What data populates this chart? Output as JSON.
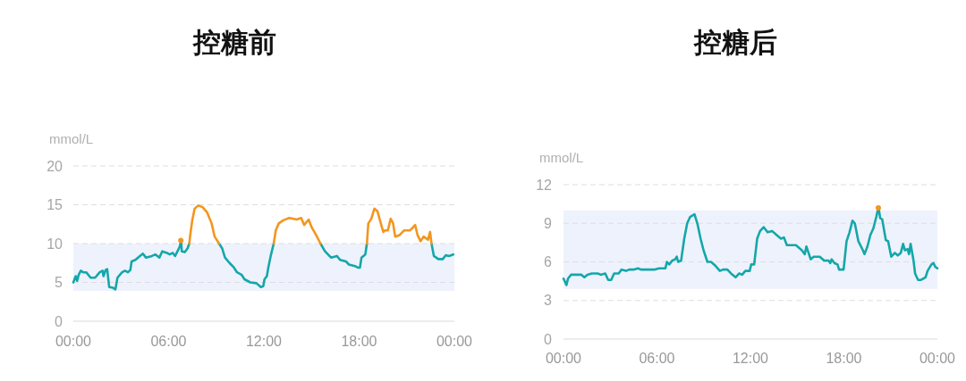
{
  "chart_data": [
    {
      "type": "line",
      "title": "控糖前",
      "ylabel": "mmol/L",
      "xlim": [
        0,
        24
      ],
      "ylim": [
        0,
        20
      ],
      "xticks": [
        {
          "value": 0,
          "label": "00:00"
        },
        {
          "value": 6,
          "label": "06:00"
        },
        {
          "value": 12,
          "label": "12:00"
        },
        {
          "value": 18,
          "label": "18:00"
        },
        {
          "value": 24,
          "label": "00:00"
        }
      ],
      "yticks": [
        0,
        5,
        10,
        15,
        20
      ],
      "grid": "y",
      "line_style": "solid",
      "bands": [
        {
          "axis": "y",
          "from": 3.9,
          "to": 10,
          "color": "#eef2fc"
        }
      ],
      "x": [
        0,
        0.15,
        0.24,
        0.34,
        0.47,
        0.62,
        0.81,
        1.09,
        1.37,
        1.66,
        1.84,
        1.9,
        2.03,
        2.13,
        2.26,
        2.5,
        2.65,
        2.78,
        3.07,
        3.25,
        3.44,
        3.59,
        3.67,
        3.91,
        4.19,
        4.38,
        4.57,
        4.95,
        5.17,
        5.42,
        5.6,
        5.89,
        6.07,
        6.26,
        6.41,
        6.58,
        6.7,
        6.74,
        6.77,
        6.8,
        6.83,
        7.02,
        7.2,
        7.3,
        7.39,
        7.49,
        7.64,
        7.86,
        8.14,
        8.43,
        8.71,
        8.9,
        9.18,
        9.37,
        9.55,
        9.84,
        10.12,
        10.31,
        10.59,
        10.78,
        11.15,
        11.53,
        11.81,
        11.96,
        12.04,
        12.19,
        12.28,
        12.43,
        12.62,
        12.75,
        12.94,
        13.22,
        13.6,
        14.07,
        14.35,
        14.54,
        14.82,
        15.01,
        15.29,
        15.57,
        15.85,
        16.23,
        16.6,
        16.8,
        17.17,
        17.36,
        17.74,
        17.92,
        18.05,
        18.15,
        18.39,
        18.49,
        18.58,
        18.77,
        18.96,
        19.15,
        19.34,
        19.52,
        19.62,
        19.81,
        19.99,
        20.14,
        20.27,
        20.55,
        20.84,
        21.21,
        21.4,
        21.53,
        21.68,
        21.87,
        22.06,
        22.34,
        22.47,
        22.56,
        22.71,
        22.99,
        23.27,
        23.46,
        23.65,
        23.93
      ],
      "series": [
        {
          "color": "#14a7aa",
          "values": [
            5.0,
            5.8,
            5.2,
            6.0,
            6.5,
            6.3,
            6.3,
            5.6,
            5.6,
            6.3,
            6.5,
            5.8,
            6.6,
            6.7,
            4.4,
            4.3,
            4.1,
            5.6,
            6.3,
            6.5,
            6.3,
            6.6,
            7.7,
            7.9,
            8.4,
            8.7,
            8.2,
            8.4,
            8.6,
            8.2,
            9.0,
            8.8,
            8.6,
            8.8,
            8.4,
            9.1,
            9.6,
            10.0,
            10.4,
            10.0,
            9.0,
            8.9,
            9.4,
            10.0,
            null,
            null,
            null,
            null,
            null,
            null,
            null,
            null,
            10.0,
            9.4,
            8.2,
            7.5,
            6.9,
            6.3,
            6.0,
            5.4,
            5.0,
            4.9,
            4.4,
            4.5,
            5.4,
            5.8,
            6.9,
            8.4,
            10.0,
            null,
            null,
            null,
            null,
            null,
            null,
            null,
            null,
            null,
            null,
            10.0,
            9.0,
            8.2,
            8.4,
            7.9,
            7.7,
            7.3,
            7.1,
            6.9,
            6.9,
            8.2,
            8.6,
            10.0,
            null,
            null,
            null,
            null,
            null,
            null,
            null,
            null,
            null,
            null,
            null,
            null,
            null,
            null,
            null,
            null,
            null,
            null,
            null,
            null,
            null,
            10.0,
            8.4,
            8.0,
            8.0,
            8.5,
            8.4,
            8.6
          ]
        },
        {
          "color": "#f3961e",
          "values": [
            null,
            null,
            null,
            null,
            null,
            null,
            null,
            null,
            null,
            null,
            null,
            null,
            null,
            null,
            null,
            null,
            null,
            null,
            null,
            null,
            null,
            null,
            null,
            null,
            null,
            null,
            null,
            null,
            null,
            null,
            null,
            null,
            null,
            null,
            null,
            null,
            null,
            null,
            null,
            null,
            null,
            null,
            null,
            10.0,
            11.5,
            13.0,
            14.5,
            14.9,
            14.7,
            14.0,
            12.6,
            10.9,
            10.0,
            null,
            null,
            null,
            null,
            null,
            null,
            null,
            null,
            null,
            null,
            null,
            null,
            null,
            null,
            null,
            10.0,
            11.7,
            12.6,
            13.0,
            13.3,
            13.1,
            13.3,
            12.4,
            13.1,
            12.1,
            11.1,
            10.0,
            null,
            null,
            null,
            null,
            null,
            null,
            null,
            null,
            null,
            null,
            null,
            10.0,
            12.6,
            13.2,
            14.5,
            14.2,
            12.8,
            11.5,
            11.7,
            11.7,
            13.2,
            12.6,
            10.9,
            11.1,
            11.7,
            11.7,
            12.1,
            12.4,
            11.1,
            10.3,
            10.9,
            10.5,
            11.5,
            10.0,
            null,
            null,
            null,
            null,
            null,
            null
          ]
        },
        {
          "type": "scatter",
          "color": "#f3961e",
          "x": [
            6.77
          ],
          "values": [
            10.4
          ]
        }
      ]
    },
    {
      "type": "line",
      "title": "控糖后",
      "ylabel": "mmol/L",
      "xlim": [
        0,
        24
      ],
      "ylim": [
        0,
        12
      ],
      "xticks": [
        {
          "value": 0,
          "label": "00:00"
        },
        {
          "value": 6,
          "label": "06:00"
        },
        {
          "value": 12,
          "label": "12:00"
        },
        {
          "value": 18,
          "label": "18:00"
        },
        {
          "value": 24,
          "label": "00:00"
        }
      ],
      "yticks": [
        0,
        3,
        6,
        9,
        12
      ],
      "grid": "y",
      "line_style": "solid",
      "bands": [
        {
          "axis": "y",
          "from": 3.9,
          "to": 10,
          "color": "#eef2fc"
        }
      ],
      "x": [
        0,
        0.19,
        0.29,
        0.48,
        0.76,
        1.15,
        1.34,
        1.53,
        1.82,
        2.2,
        2.39,
        2.68,
        2.87,
        3.06,
        3.25,
        3.54,
        3.73,
        4.02,
        4.21,
        4.49,
        4.78,
        4.97,
        5.26,
        5.55,
        5.83,
        6.12,
        6.54,
        6.64,
        6.79,
        6.98,
        7.17,
        7.27,
        7.36,
        7.55,
        7.75,
        7.94,
        8.13,
        8.41,
        8.61,
        8.8,
        8.99,
        9.24,
        9.47,
        9.75,
        10.04,
        10.23,
        10.52,
        10.75,
        11.05,
        11.28,
        11.47,
        11.67,
        11.95,
        12.05,
        12.24,
        12.43,
        12.62,
        12.85,
        13.1,
        13.39,
        13.67,
        13.96,
        14.15,
        14.34,
        14.92,
        15.3,
        15.49,
        15.59,
        15.87,
        16.06,
        16.45,
        16.73,
        17.02,
        17.12,
        17.21,
        17.4,
        17.59,
        17.69,
        17.98,
        18.17,
        18.36,
        18.55,
        18.7,
        18.93,
        19.22,
        19.32,
        19.51,
        19.7,
        19.89,
        20.08,
        20.17,
        20.21,
        20.25,
        20.33,
        20.46,
        20.69,
        20.84,
        21.04,
        21.27,
        21.46,
        21.65,
        21.8,
        21.92,
        22.09,
        22.18,
        22.28,
        22.47,
        22.57,
        22.76,
        22.95,
        23.1,
        23.24,
        23.37,
        23.62,
        23.75,
        23.87,
        24
      ],
      "series": [
        {
          "color": "#14a7aa",
          "values": [
            4.7,
            4.2,
            4.7,
            5.0,
            5.0,
            5.0,
            4.8,
            5.0,
            5.1,
            5.1,
            5.0,
            5.1,
            4.6,
            4.6,
            5.1,
            5.1,
            5.4,
            5.3,
            5.4,
            5.4,
            5.5,
            5.4,
            5.4,
            5.4,
            5.4,
            5.5,
            5.5,
            6.0,
            5.8,
            6.1,
            6.2,
            6.4,
            6.0,
            6.1,
            7.8,
            9.0,
            9.5,
            9.7,
            8.9,
            7.8,
            6.9,
            6.0,
            6.0,
            5.7,
            5.3,
            5.4,
            5.4,
            5.1,
            4.8,
            5.1,
            5.0,
            5.3,
            5.3,
            5.8,
            5.8,
            7.8,
            8.4,
            8.7,
            8.3,
            8.4,
            8.1,
            7.8,
            7.9,
            7.3,
            7.3,
            6.9,
            6.6,
            7.2,
            6.2,
            6.4,
            6.4,
            6.1,
            6.1,
            5.9,
            6.2,
            5.9,
            5.8,
            5.4,
            5.4,
            7.6,
            8.3,
            9.2,
            9.0,
            7.6,
            6.9,
            6.6,
            7.2,
            8.1,
            8.6,
            9.5,
            10.0,
            10.2,
            10.0,
            9.4,
            9.3,
            7.7,
            7.6,
            6.4,
            6.7,
            6.5,
            6.7,
            7.4,
            6.9,
            7.0,
            6.6,
            7.4,
            6.1,
            5.1,
            4.6,
            4.6,
            4.7,
            4.8,
            5.3,
            5.8,
            5.9,
            5.6,
            5.5
          ]
        },
        {
          "type": "scatter",
          "color": "#f3961e",
          "x": [
            20.21
          ],
          "values": [
            10.2
          ]
        }
      ]
    }
  ]
}
